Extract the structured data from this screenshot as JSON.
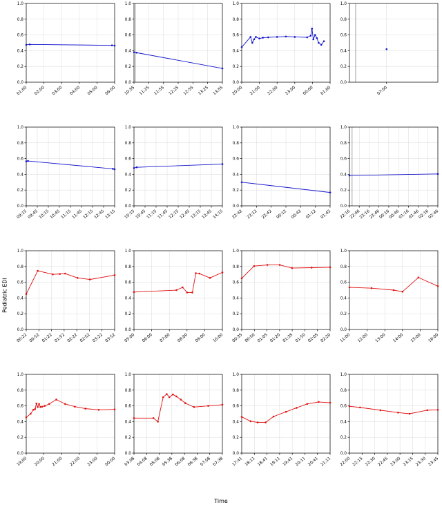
{
  "figure": {
    "ylabel": "Pediatric EDI",
    "xlabel": "Time",
    "ylim": [
      0,
      1
    ],
    "yticks": [
      0,
      0.2,
      0.4,
      0.6,
      0.8,
      1.0
    ],
    "grid": "on",
    "colors": {
      "blue": "#1414cc",
      "red": "#e01010",
      "grid": "#d9d9d9",
      "spine": "#000000",
      "vline": "#8a8a8a"
    },
    "points_format": "[x_fraction_of_axis, y_value]"
  },
  "chart_data": [
    {
      "type": "line",
      "color": "blue",
      "x_ticks": [
        "01:00",
        "02:00",
        "03:00",
        "04:00",
        "05:00",
        "06:00"
      ],
      "points": [
        [
          0.0,
          0.475
        ],
        [
          0.04,
          0.48
        ],
        [
          0.97,
          0.468
        ],
        [
          1.0,
          0.465
        ]
      ]
    },
    {
      "type": "line",
      "color": "blue",
      "x_ticks": [
        "10:55",
        "11:25",
        "11:55",
        "12:25",
        "12:55",
        "13:25",
        "13:55"
      ],
      "vlines": [
        0.015
      ],
      "points": [
        [
          0.0,
          0.38
        ],
        [
          0.03,
          0.375
        ],
        [
          1.0,
          0.175
        ]
      ]
    },
    {
      "type": "line",
      "color": "blue",
      "x_ticks": [
        "20:00",
        "21:00",
        "22:00",
        "23:00",
        "00:00",
        "01:00"
      ],
      "points": [
        [
          0.0,
          0.445
        ],
        [
          0.1,
          0.575
        ],
        [
          0.12,
          0.5
        ],
        [
          0.14,
          0.545
        ],
        [
          0.16,
          0.575
        ],
        [
          0.2,
          0.555
        ],
        [
          0.24,
          0.565
        ],
        [
          0.3,
          0.57
        ],
        [
          0.4,
          0.575
        ],
        [
          0.5,
          0.58
        ],
        [
          0.6,
          0.575
        ],
        [
          0.74,
          0.57
        ],
        [
          0.78,
          0.59
        ],
        [
          0.795,
          0.68
        ],
        [
          0.81,
          0.545
        ],
        [
          0.83,
          0.6
        ],
        [
          0.85,
          0.56
        ],
        [
          0.87,
          0.5
        ],
        [
          0.9,
          0.475
        ],
        [
          0.93,
          0.52
        ]
      ]
    },
    {
      "type": "line",
      "color": "blue",
      "x_ticks": [
        "07:00"
      ],
      "tick_fracs": [
        0.42
      ],
      "vlines": [
        0.07
      ],
      "points": [
        [
          0.42,
          0.42
        ]
      ]
    },
    {
      "type": "line",
      "color": "blue",
      "x_ticks": [
        "09:15",
        "09:45",
        "10:15",
        "10:45",
        "11:15",
        "11:45",
        "12:15",
        "12:45",
        "13:15"
      ],
      "points": [
        [
          0.0,
          0.565
        ],
        [
          0.02,
          0.57
        ],
        [
          0.98,
          0.47
        ],
        [
          1.0,
          0.465
        ]
      ]
    },
    {
      "type": "line",
      "color": "blue",
      "x_ticks": [
        "10:15",
        "10:45",
        "11:15",
        "11:45",
        "12:15",
        "12:45",
        "13:15",
        "13:45",
        "14:15"
      ],
      "points": [
        [
          0.0,
          0.48
        ],
        [
          0.03,
          0.49
        ],
        [
          1.0,
          0.53
        ]
      ]
    },
    {
      "type": "line",
      "color": "blue",
      "x_ticks": [
        "22:42",
        "23:12",
        "23:42",
        "00:12",
        "00:42",
        "01:12",
        "01:42"
      ],
      "points": [
        [
          0.0,
          0.3
        ],
        [
          1.0,
          0.17
        ]
      ]
    },
    {
      "type": "line",
      "color": "blue",
      "x_ticks": [
        "22:16",
        "22:46",
        "23:16",
        "23:46",
        "00:16",
        "00:46",
        "01:16",
        "01:46",
        "02:16",
        "02:46"
      ],
      "vlines": [
        0.03
      ],
      "points": [
        [
          0.0,
          0.385
        ],
        [
          1.0,
          0.405
        ]
      ]
    },
    {
      "type": "line",
      "color": "red",
      "x_ticks": [
        "00:22",
        "00:52",
        "01:22",
        "01:52",
        "02:22",
        "02:52",
        "03:22",
        "03:52"
      ],
      "points": [
        [
          0.0,
          0.45
        ],
        [
          0.13,
          0.745
        ],
        [
          0.3,
          0.7
        ],
        [
          0.38,
          0.705
        ],
        [
          0.44,
          0.71
        ],
        [
          0.58,
          0.655
        ],
        [
          0.72,
          0.635
        ],
        [
          1.0,
          0.69
        ]
      ]
    },
    {
      "type": "line",
      "color": "red",
      "x_ticks": [
        "05:00",
        "06:00",
        "07:00",
        "08:00",
        "09:00",
        "10:00"
      ],
      "points": [
        [
          0.0,
          0.475
        ],
        [
          0.48,
          0.5
        ],
        [
          0.55,
          0.535
        ],
        [
          0.6,
          0.47
        ],
        [
          0.66,
          0.47
        ],
        [
          0.7,
          0.715
        ],
        [
          0.74,
          0.71
        ],
        [
          0.86,
          0.655
        ],
        [
          1.0,
          0.725
        ]
      ]
    },
    {
      "type": "line",
      "color": "red",
      "x_ticks": [
        "00:35",
        "00:50",
        "01:05",
        "01:20",
        "01:35",
        "01:50",
        "02:05",
        "02:20"
      ],
      "points": [
        [
          0.0,
          0.65
        ],
        [
          0.14,
          0.805
        ],
        [
          0.29,
          0.82
        ],
        [
          0.43,
          0.82
        ],
        [
          0.57,
          0.78
        ],
        [
          0.79,
          0.785
        ],
        [
          1.0,
          0.79
        ]
      ]
    },
    {
      "type": "line",
      "color": "red",
      "x_ticks": [
        "11:00",
        "12:00",
        "13:00",
        "14:00",
        "15:00",
        "16:00"
      ],
      "points": [
        [
          0.0,
          0.535
        ],
        [
          0.25,
          0.525
        ],
        [
          0.5,
          0.5
        ],
        [
          0.6,
          0.48
        ],
        [
          0.78,
          0.66
        ],
        [
          1.0,
          0.55
        ]
      ]
    },
    {
      "type": "line",
      "color": "red",
      "x_ticks": [
        "19:00",
        "20:00",
        "21:00",
        "22:00",
        "23:00",
        "00:00"
      ],
      "points": [
        [
          0.0,
          0.455
        ],
        [
          0.05,
          0.5
        ],
        [
          0.08,
          0.55
        ],
        [
          0.1,
          0.56
        ],
        [
          0.115,
          0.63
        ],
        [
          0.13,
          0.585
        ],
        [
          0.145,
          0.625
        ],
        [
          0.16,
          0.585
        ],
        [
          0.18,
          0.59
        ],
        [
          0.21,
          0.6
        ],
        [
          0.26,
          0.625
        ],
        [
          0.34,
          0.68
        ],
        [
          0.44,
          0.625
        ],
        [
          0.55,
          0.59
        ],
        [
          0.67,
          0.565
        ],
        [
          0.82,
          0.55
        ],
        [
          1.0,
          0.555
        ]
      ]
    },
    {
      "type": "line",
      "color": "red",
      "x_ticks": [
        "03:08",
        "04:08",
        "05:08",
        "05:38",
        "06:08",
        "06:38",
        "07:08",
        "07:38"
      ],
      "points": [
        [
          0.0,
          0.445
        ],
        [
          0.22,
          0.445
        ],
        [
          0.27,
          0.4
        ],
        [
          0.33,
          0.71
        ],
        [
          0.37,
          0.75
        ],
        [
          0.4,
          0.71
        ],
        [
          0.44,
          0.745
        ],
        [
          0.48,
          0.72
        ],
        [
          0.53,
          0.68
        ],
        [
          0.58,
          0.635
        ],
        [
          0.68,
          0.585
        ],
        [
          0.84,
          0.6
        ],
        [
          1.0,
          0.615
        ]
      ]
    },
    {
      "type": "line",
      "color": "red",
      "x_ticks": [
        "17:41",
        "18:11",
        "18:41",
        "19:11",
        "19:41",
        "20:11",
        "20:41",
        "21:11"
      ],
      "points": [
        [
          0.0,
          0.46
        ],
        [
          0.1,
          0.405
        ],
        [
          0.18,
          0.39
        ],
        [
          0.27,
          0.39
        ],
        [
          0.36,
          0.465
        ],
        [
          0.5,
          0.525
        ],
        [
          0.62,
          0.575
        ],
        [
          0.74,
          0.625
        ],
        [
          0.87,
          0.65
        ],
        [
          1.0,
          0.64
        ]
      ]
    },
    {
      "type": "line",
      "color": "red",
      "x_ticks": [
        "22:00",
        "22:15",
        "22:30",
        "22:45",
        "23:00",
        "23:15",
        "23:30",
        "23:45"
      ],
      "points": [
        [
          0.0,
          0.595
        ],
        [
          0.12,
          0.58
        ],
        [
          0.35,
          0.545
        ],
        [
          0.55,
          0.515
        ],
        [
          0.68,
          0.5
        ],
        [
          0.88,
          0.545
        ],
        [
          1.0,
          0.55
        ]
      ]
    }
  ]
}
